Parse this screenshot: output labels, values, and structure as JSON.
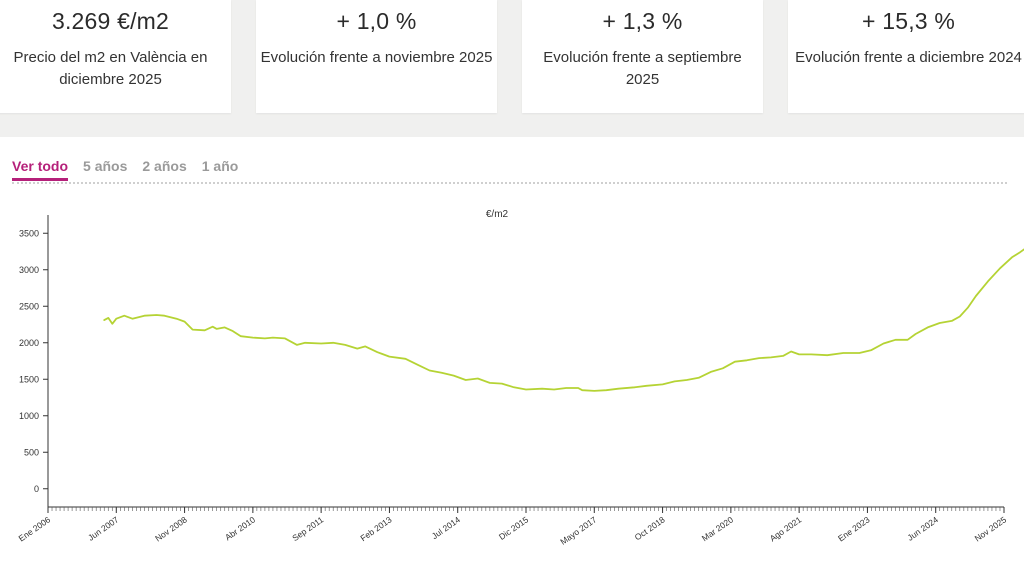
{
  "kpis": [
    {
      "value": "3.269 €/m2",
      "label": "Precio del m2 en València en diciembre 2025"
    },
    {
      "value": "+ 1,0 %",
      "label": "Evolución frente a noviembre 2025"
    },
    {
      "value": "+ 1,3 %",
      "label": "Evolución frente a septiembre 2025"
    },
    {
      "value": "+ 15,3 %",
      "label": "Evolución frente a diciembre 2024"
    }
  ],
  "tabs": [
    {
      "label": "Ver todo",
      "active": true
    },
    {
      "label": "5 años",
      "active": false
    },
    {
      "label": "2 años",
      "active": false
    },
    {
      "label": "1 año",
      "active": false
    }
  ],
  "chart_data": {
    "type": "line",
    "title": "€/m2",
    "xlabel": "",
    "ylabel": "",
    "ylim": [
      -250,
      3750
    ],
    "yticks": [
      0,
      500,
      1000,
      1500,
      2000,
      2500,
      3000,
      3500
    ],
    "xlim": [
      "2006-01",
      "2025-11"
    ],
    "xticks": [
      {
        "date": "2006-01",
        "label": "Ene 2006"
      },
      {
        "date": "2007-06",
        "label": "Jun 2007"
      },
      {
        "date": "2008-11",
        "label": "Nov 2008"
      },
      {
        "date": "2010-04",
        "label": "Abr 2010"
      },
      {
        "date": "2011-09",
        "label": "Sep 2011"
      },
      {
        "date": "2013-02",
        "label": "Feb 2013"
      },
      {
        "date": "2014-07",
        "label": "Jul 2014"
      },
      {
        "date": "2015-12",
        "label": "Dic 2015"
      },
      {
        "date": "2017-05",
        "label": "Mayo 2017"
      },
      {
        "date": "2018-10",
        "label": "Oct 2018"
      },
      {
        "date": "2020-03",
        "label": "Mar 2020"
      },
      {
        "date": "2021-08",
        "label": "Ago 2021"
      },
      {
        "date": "2023-01",
        "label": "Ene 2023"
      },
      {
        "date": "2024-06",
        "label": "Jun 2024"
      },
      {
        "date": "2025-11",
        "label": "Nov 2025"
      }
    ],
    "grid": false,
    "legend": "none",
    "series": [
      {
        "color": "#b5d334",
        "points": [
          [
            "2007-03",
            2310
          ],
          [
            "2007-04",
            2340
          ],
          [
            "2007-05",
            2260
          ],
          [
            "2007-06",
            2330
          ],
          [
            "2007-08",
            2370
          ],
          [
            "2007-10",
            2330
          ],
          [
            "2008-01",
            2370
          ],
          [
            "2008-04",
            2380
          ],
          [
            "2008-06",
            2370
          ],
          [
            "2008-09",
            2330
          ],
          [
            "2008-11",
            2290
          ],
          [
            "2009-01",
            2180
          ],
          [
            "2009-04",
            2170
          ],
          [
            "2009-06",
            2220
          ],
          [
            "2009-07",
            2190
          ],
          [
            "2009-09",
            2210
          ],
          [
            "2009-11",
            2160
          ],
          [
            "2010-01",
            2090
          ],
          [
            "2010-04",
            2070
          ],
          [
            "2010-07",
            2060
          ],
          [
            "2010-09",
            2070
          ],
          [
            "2010-12",
            2060
          ],
          [
            "2011-03",
            1970
          ],
          [
            "2011-05",
            2000
          ],
          [
            "2011-09",
            1990
          ],
          [
            "2011-12",
            2000
          ],
          [
            "2012-03",
            1970
          ],
          [
            "2012-06",
            1920
          ],
          [
            "2012-08",
            1950
          ],
          [
            "2012-11",
            1870
          ],
          [
            "2013-02",
            1810
          ],
          [
            "2013-06",
            1780
          ],
          [
            "2013-09",
            1700
          ],
          [
            "2013-12",
            1620
          ],
          [
            "2014-03",
            1590
          ],
          [
            "2014-06",
            1550
          ],
          [
            "2014-09",
            1490
          ],
          [
            "2014-12",
            1510
          ],
          [
            "2015-03",
            1450
          ],
          [
            "2015-06",
            1440
          ],
          [
            "2015-09",
            1390
          ],
          [
            "2015-12",
            1360
          ],
          [
            "2016-04",
            1370
          ],
          [
            "2016-07",
            1360
          ],
          [
            "2016-10",
            1380
          ],
          [
            "2017-01",
            1380
          ],
          [
            "2017-02",
            1350
          ],
          [
            "2017-05",
            1340
          ],
          [
            "2017-08",
            1350
          ],
          [
            "2017-11",
            1370
          ],
          [
            "2018-03",
            1390
          ],
          [
            "2018-06",
            1410
          ],
          [
            "2018-10",
            1430
          ],
          [
            "2019-01",
            1470
          ],
          [
            "2019-04",
            1490
          ],
          [
            "2019-07",
            1520
          ],
          [
            "2019-10",
            1600
          ],
          [
            "2020-01",
            1650
          ],
          [
            "2020-04",
            1740
          ],
          [
            "2020-07",
            1760
          ],
          [
            "2020-10",
            1790
          ],
          [
            "2021-01",
            1800
          ],
          [
            "2021-04",
            1820
          ],
          [
            "2021-06",
            1880
          ],
          [
            "2021-08",
            1840
          ],
          [
            "2021-11",
            1840
          ],
          [
            "2022-03",
            1830
          ],
          [
            "2022-07",
            1860
          ],
          [
            "2022-11",
            1860
          ],
          [
            "2023-02",
            1900
          ],
          [
            "2023-05",
            1990
          ],
          [
            "2023-08",
            2040
          ],
          [
            "2023-11",
            2040
          ],
          [
            "2024-01",
            2120
          ],
          [
            "2024-04",
            2210
          ],
          [
            "2024-07",
            2270
          ],
          [
            "2024-10",
            2300
          ],
          [
            "2024-12",
            2360
          ],
          [
            "2025-02",
            2480
          ],
          [
            "2025-04",
            2640
          ],
          [
            "2025-07",
            2840
          ],
          [
            "2025-10",
            3020
          ],
          [
            "2026-01",
            3170
          ],
          [
            "2026-03",
            3240
          ],
          [
            "2026-04",
            3280
          ]
        ]
      }
    ]
  }
}
